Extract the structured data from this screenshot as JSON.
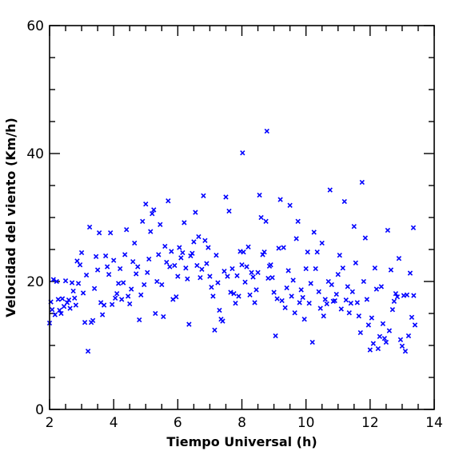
{
  "chart_data": {
    "type": "scatter",
    "title": "",
    "xlabel": "Tiempo Universal (h)",
    "ylabel": "Velocidad del viento (Km/h)",
    "xlim": [
      2,
      14
    ],
    "ylim": [
      0,
      60
    ],
    "x_ticks": [
      2,
      4,
      6,
      8,
      10,
      12,
      14
    ],
    "y_ticks": [
      0,
      20,
      40,
      60
    ],
    "x_minor_step": 0.5,
    "y_minor_step": 5,
    "marker": "x",
    "color": "#0000ff",
    "grid": false,
    "legend": "none",
    "points": [
      [
        2.0,
        13.5
      ],
      [
        2.04,
        16.8
      ],
      [
        2.08,
        15.6
      ],
      [
        2.12,
        20.3
      ],
      [
        2.17,
        14.8
      ],
      [
        2.22,
        20.0
      ],
      [
        2.27,
        17.2
      ],
      [
        2.31,
        15.5
      ],
      [
        2.36,
        15.0
      ],
      [
        2.4,
        17.3
      ],
      [
        2.45,
        16.1
      ],
      [
        2.5,
        20.1
      ],
      [
        2.55,
        16.7
      ],
      [
        2.6,
        17.1
      ],
      [
        2.64,
        15.8
      ],
      [
        2.7,
        19.8
      ],
      [
        2.74,
        18.5
      ],
      [
        2.78,
        17.4
      ],
      [
        2.82,
        16.3
      ],
      [
        2.86,
        23.2
      ],
      [
        2.9,
        19.7
      ],
      [
        2.95,
        22.6
      ],
      [
        3.0,
        24.5
      ],
      [
        3.05,
        18.2
      ],
      [
        3.1,
        13.6
      ],
      [
        3.15,
        21.0
      ],
      [
        3.2,
        9.1
      ],
      [
        3.25,
        28.5
      ],
      [
        3.3,
        13.6
      ],
      [
        3.35,
        13.9
      ],
      [
        3.4,
        18.9
      ],
      [
        3.45,
        23.9
      ],
      [
        3.5,
        21.8
      ],
      [
        3.55,
        27.6
      ],
      [
        3.6,
        16.7
      ],
      [
        3.65,
        14.8
      ],
      [
        3.7,
        16.3
      ],
      [
        3.75,
        24.0
      ],
      [
        3.8,
        22.3
      ],
      [
        3.85,
        21.1
      ],
      [
        3.9,
        27.6
      ],
      [
        3.95,
        16.4
      ],
      [
        4.0,
        23.3
      ],
      [
        4.05,
        17.4
      ],
      [
        4.1,
        18.1
      ],
      [
        4.15,
        19.7
      ],
      [
        4.2,
        22.0
      ],
      [
        4.25,
        17.2
      ],
      [
        4.3,
        19.8
      ],
      [
        4.35,
        24.2
      ],
      [
        4.4,
        28.1
      ],
      [
        4.45,
        17.7
      ],
      [
        4.5,
        16.5
      ],
      [
        4.55,
        18.8
      ],
      [
        4.6,
        23.1
      ],
      [
        4.65,
        26.0
      ],
      [
        4.7,
        21.2
      ],
      [
        4.75,
        22.3
      ],
      [
        4.8,
        14.0
      ],
      [
        4.85,
        17.9
      ],
      [
        4.9,
        29.4
      ],
      [
        4.95,
        19.5
      ],
      [
        5.0,
        32.1
      ],
      [
        5.05,
        21.4
      ],
      [
        5.1,
        23.5
      ],
      [
        5.15,
        27.8
      ],
      [
        5.2,
        30.6
      ],
      [
        5.25,
        31.2
      ],
      [
        5.3,
        15.0
      ],
      [
        5.35,
        20.0
      ],
      [
        5.4,
        24.2
      ],
      [
        5.45,
        28.9
      ],
      [
        5.5,
        19.5
      ],
      [
        5.55,
        14.5
      ],
      [
        5.6,
        25.5
      ],
      [
        5.65,
        23.0
      ],
      [
        5.7,
        32.6
      ],
      [
        5.75,
        22.3
      ],
      [
        5.8,
        24.7
      ],
      [
        5.85,
        17.2
      ],
      [
        5.9,
        22.5
      ],
      [
        5.95,
        17.6
      ],
      [
        6.0,
        20.8
      ],
      [
        6.05,
        25.3
      ],
      [
        6.1,
        23.7
      ],
      [
        6.15,
        24.5
      ],
      [
        6.2,
        29.2
      ],
      [
        6.25,
        22.1
      ],
      [
        6.3,
        20.4
      ],
      [
        6.35,
        13.3
      ],
      [
        6.4,
        24.0
      ],
      [
        6.45,
        24.4
      ],
      [
        6.5,
        26.2
      ],
      [
        6.55,
        30.8
      ],
      [
        6.6,
        22.5
      ],
      [
        6.65,
        27.0
      ],
      [
        6.7,
        20.6
      ],
      [
        6.75,
        21.9
      ],
      [
        6.8,
        33.4
      ],
      [
        6.85,
        26.4
      ],
      [
        6.9,
        22.8
      ],
      [
        6.95,
        25.3
      ],
      [
        7.0,
        20.8
      ],
      [
        7.05,
        19.1
      ],
      [
        7.1,
        17.7
      ],
      [
        7.15,
        12.4
      ],
      [
        7.2,
        24.1
      ],
      [
        7.25,
        19.8
      ],
      [
        7.3,
        15.5
      ],
      [
        7.35,
        14.1
      ],
      [
        7.4,
        13.8
      ],
      [
        7.45,
        21.6
      ],
      [
        7.5,
        33.2
      ],
      [
        7.55,
        20.8
      ],
      [
        7.6,
        31.0
      ],
      [
        7.65,
        18.3
      ],
      [
        7.7,
        22.0
      ],
      [
        7.75,
        18.1
      ],
      [
        7.8,
        16.6
      ],
      [
        7.85,
        20.9
      ],
      [
        7.9,
        17.7
      ],
      [
        7.95,
        24.7
      ],
      [
        8.0,
        22.6
      ],
      [
        8.02,
        40.1
      ],
      [
        8.05,
        24.6
      ],
      [
        8.1,
        19.9
      ],
      [
        8.15,
        22.3
      ],
      [
        8.2,
        25.4
      ],
      [
        8.25,
        17.9
      ],
      [
        8.3,
        21.4
      ],
      [
        8.35,
        20.7
      ],
      [
        8.4,
        16.7
      ],
      [
        8.45,
        18.7
      ],
      [
        8.5,
        21.4
      ],
      [
        8.55,
        33.5
      ],
      [
        8.6,
        30.0
      ],
      [
        8.65,
        24.2
      ],
      [
        8.7,
        24.6
      ],
      [
        8.75,
        29.4
      ],
      [
        8.78,
        43.5
      ],
      [
        8.82,
        20.5
      ],
      [
        8.86,
        22.4
      ],
      [
        8.9,
        22.6
      ],
      [
        8.95,
        20.6
      ],
      [
        9.0,
        18.3
      ],
      [
        9.05,
        11.5
      ],
      [
        9.1,
        17.3
      ],
      [
        9.15,
        25.2
      ],
      [
        9.2,
        32.8
      ],
      [
        9.25,
        17.0
      ],
      [
        9.3,
        25.3
      ],
      [
        9.35,
        15.9
      ],
      [
        9.4,
        19.0
      ],
      [
        9.45,
        21.7
      ],
      [
        9.5,
        31.9
      ],
      [
        9.55,
        17.7
      ],
      [
        9.6,
        20.2
      ],
      [
        9.65,
        15.1
      ],
      [
        9.7,
        26.7
      ],
      [
        9.75,
        29.4
      ],
      [
        9.8,
        16.7
      ],
      [
        9.85,
        18.7
      ],
      [
        9.9,
        17.5
      ],
      [
        9.95,
        14.1
      ],
      [
        10.0,
        22.0
      ],
      [
        10.05,
        24.6
      ],
      [
        10.1,
        16.6
      ],
      [
        10.15,
        19.7
      ],
      [
        10.2,
        10.5
      ],
      [
        10.25,
        27.7
      ],
      [
        10.3,
        22.0
      ],
      [
        10.35,
        24.6
      ],
      [
        10.4,
        18.4
      ],
      [
        10.45,
        15.8
      ],
      [
        10.5,
        26.0
      ],
      [
        10.55,
        14.6
      ],
      [
        10.6,
        17.2
      ],
      [
        10.65,
        16.5
      ],
      [
        10.7,
        20.0
      ],
      [
        10.75,
        34.3
      ],
      [
        10.8,
        19.5
      ],
      [
        10.85,
        16.9
      ],
      [
        10.9,
        17.0
      ],
      [
        10.95,
        18.0
      ],
      [
        11.0,
        21.1
      ],
      [
        11.05,
        24.1
      ],
      [
        11.1,
        15.7
      ],
      [
        11.15,
        22.1
      ],
      [
        11.2,
        32.5
      ],
      [
        11.25,
        17.1
      ],
      [
        11.3,
        19.2
      ],
      [
        11.35,
        15.1
      ],
      [
        11.4,
        16.6
      ],
      [
        11.45,
        18.4
      ],
      [
        11.5,
        28.6
      ],
      [
        11.55,
        22.9
      ],
      [
        11.6,
        16.7
      ],
      [
        11.65,
        14.6
      ],
      [
        11.7,
        12.0
      ],
      [
        11.75,
        35.5
      ],
      [
        11.8,
        20.0
      ],
      [
        11.85,
        26.8
      ],
      [
        11.9,
        17.2
      ],
      [
        11.95,
        13.2
      ],
      [
        12.0,
        9.3
      ],
      [
        12.05,
        14.3
      ],
      [
        12.1,
        10.3
      ],
      [
        12.15,
        22.1
      ],
      [
        12.2,
        18.8
      ],
      [
        12.25,
        9.5
      ],
      [
        12.3,
        11.4
      ],
      [
        12.35,
        19.2
      ],
      [
        12.4,
        13.4
      ],
      [
        12.45,
        11.1
      ],
      [
        12.5,
        10.5
      ],
      [
        12.55,
        28.0
      ],
      [
        12.6,
        12.3
      ],
      [
        12.65,
        21.8
      ],
      [
        12.7,
        15.6
      ],
      [
        12.75,
        16.9
      ],
      [
        12.8,
        18.1
      ],
      [
        12.85,
        17.6
      ],
      [
        12.9,
        23.6
      ],
      [
        12.95,
        10.9
      ],
      [
        13.0,
        9.9
      ],
      [
        13.05,
        17.8
      ],
      [
        13.1,
        9.1
      ],
      [
        13.15,
        17.9
      ],
      [
        13.2,
        11.5
      ],
      [
        13.25,
        21.3
      ],
      [
        13.3,
        14.4
      ],
      [
        13.35,
        28.4
      ],
      [
        13.4,
        13.2
      ],
      [
        13.36,
        17.8
      ]
    ]
  }
}
